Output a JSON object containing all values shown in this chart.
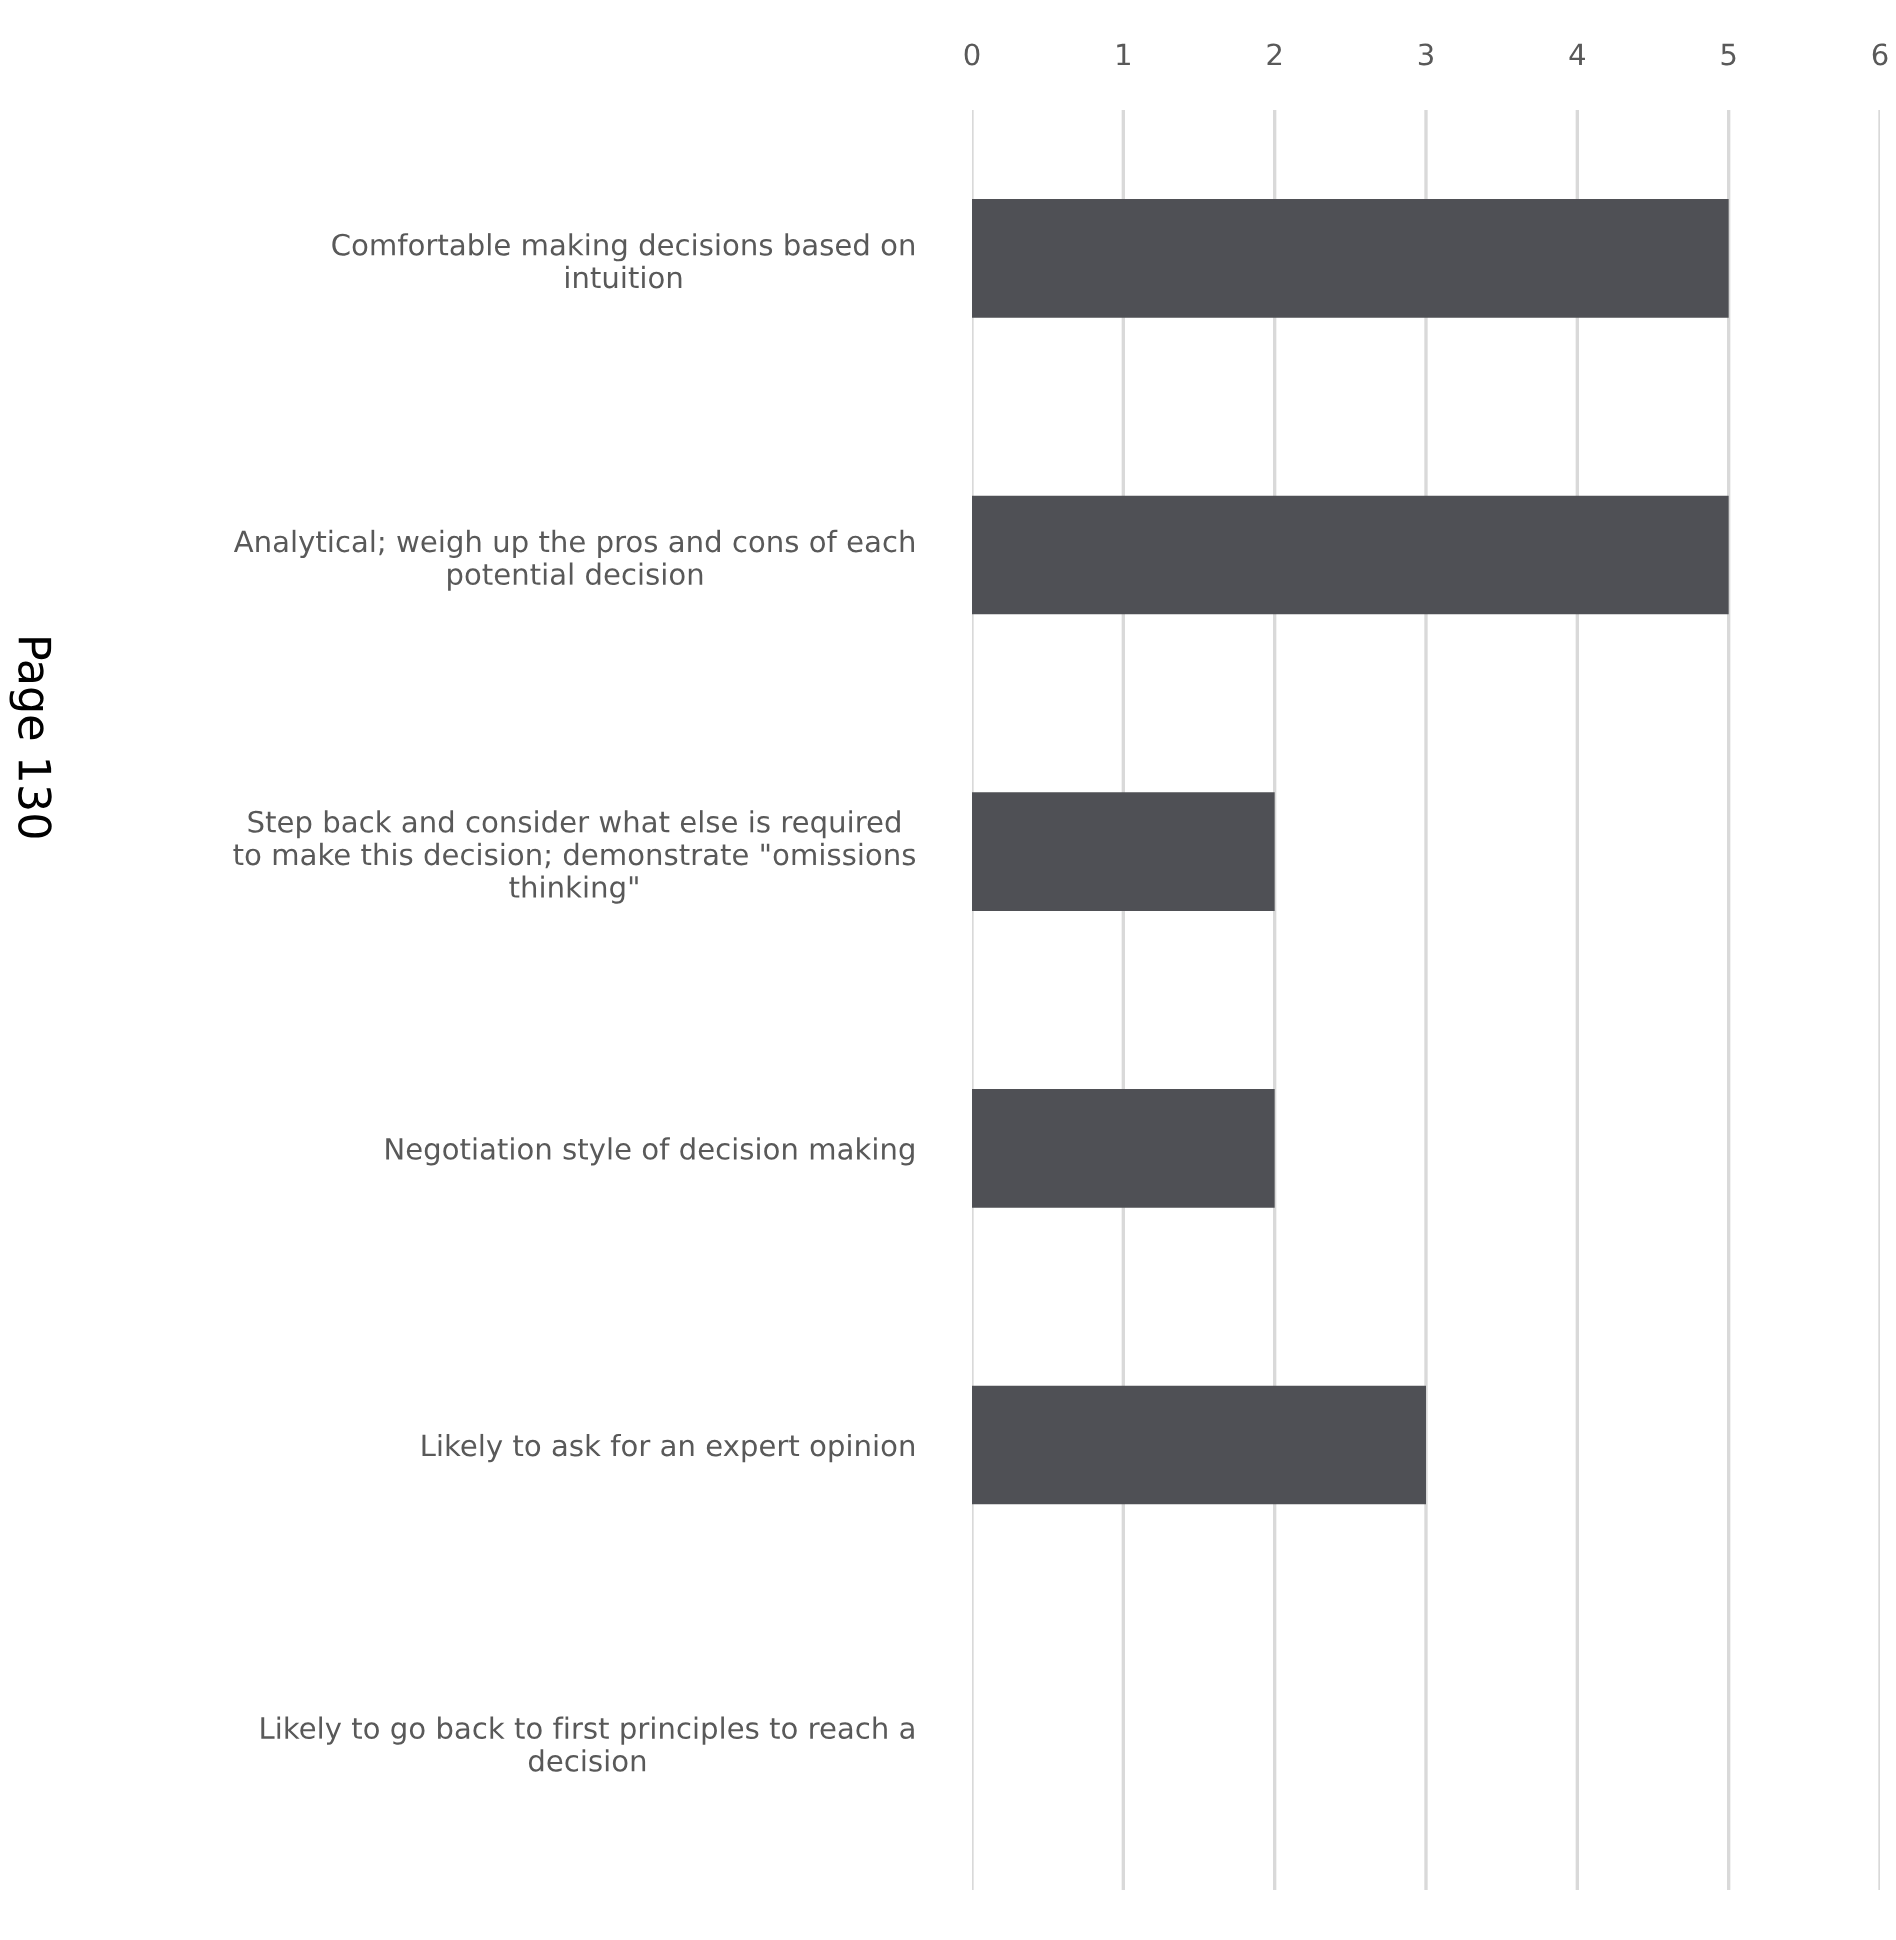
{
  "chart_data": {
    "type": "bar",
    "orientation": "horizontal",
    "categories": [
      "Comfortable making decisions based on\nintuition",
      "Analytical; weigh up the pros and cons of each\npotential decision",
      "Step back and consider what else is required\nto make this decision; demonstrate \"omissions\nthinking\"",
      "Negotiation style of decision making",
      "Likely to ask for an expert opinion",
      "Likely to go back to first principles to reach a\ndecision"
    ],
    "values": [
      5,
      5,
      2,
      2,
      3,
      0
    ],
    "color": "#4f5055",
    "xlim": [
      0,
      6
    ],
    "xticks": [
      0,
      1,
      2,
      3,
      4,
      5,
      6
    ],
    "grid": "x",
    "annotations": [
      "Page 130"
    ]
  }
}
